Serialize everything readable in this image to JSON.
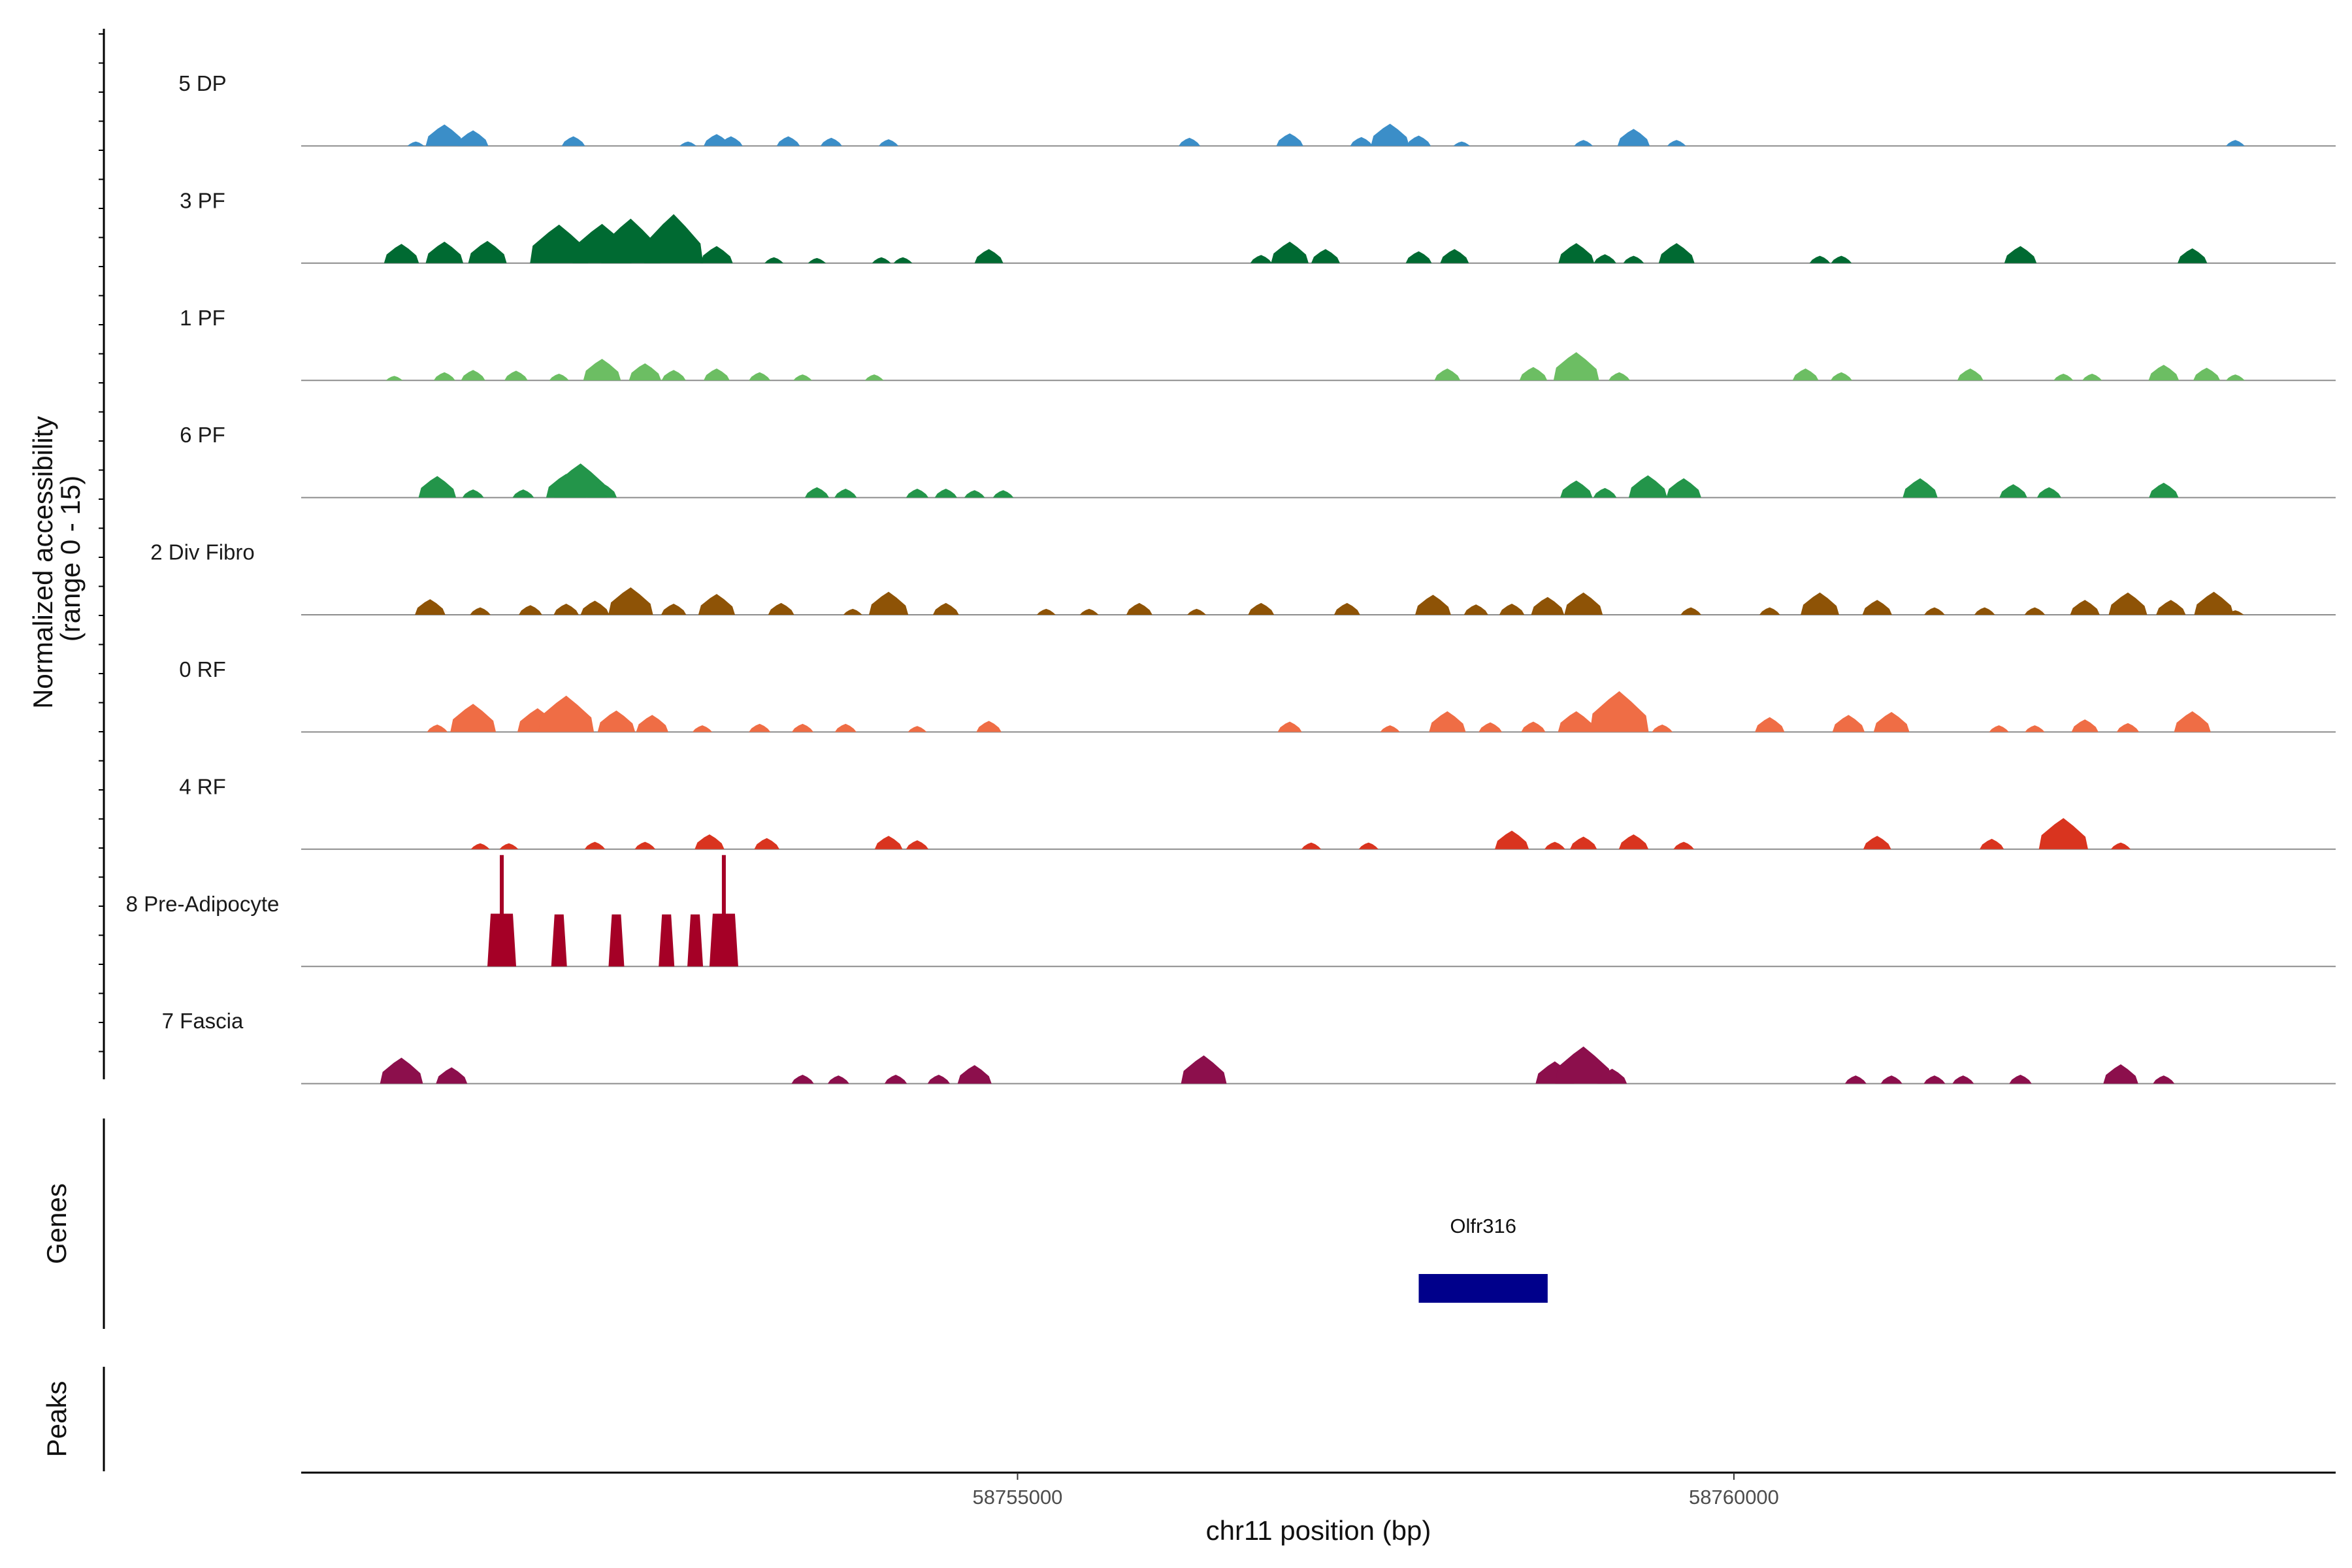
{
  "chart_data": {
    "type": "area",
    "region": {
      "chrom": "chr11",
      "start": 58750000,
      "end": 58764200
    },
    "ylabel_line1": "Normalized accessibility",
    "ylabel_line2": "(range 0 - 15)",
    "ylim": [
      0,
      15
    ],
    "xlabel": "chr11 position (bp)",
    "x_ticks": [
      58755000,
      58760000
    ],
    "x_tick_labels": [
      "58755000",
      "58760000"
    ],
    "panel_labels": {
      "genes": "Genes",
      "peaks": "Peaks"
    },
    "tracks": [
      {
        "name": "5 DP",
        "color": "#3b8ec8",
        "peaks": [
          [
            58750800,
            0.6
          ],
          [
            58751000,
            2.9
          ],
          [
            58751200,
            2.1
          ],
          [
            58751900,
            1.3
          ],
          [
            58752700,
            0.6
          ],
          [
            58752900,
            1.6
          ],
          [
            58753000,
            1.3
          ],
          [
            58753400,
            1.3
          ],
          [
            58753700,
            1.1
          ],
          [
            58754100,
            0.9
          ],
          [
            58756200,
            1.1
          ],
          [
            58756900,
            1.7
          ],
          [
            58757400,
            1.2
          ],
          [
            58757600,
            3.0
          ],
          [
            58757800,
            1.4
          ],
          [
            58758100,
            0.6
          ],
          [
            58758950,
            0.8
          ],
          [
            58759300,
            2.3
          ],
          [
            58759600,
            0.8
          ],
          [
            58763500,
            0.8
          ]
        ]
      },
      {
        "name": "3 PF",
        "color": "#006a32",
        "peaks": [
          [
            58750700,
            2.6
          ],
          [
            58751000,
            2.9
          ],
          [
            58751300,
            3.0
          ],
          [
            58751800,
            5.2
          ],
          [
            58752100,
            5.3
          ],
          [
            58752300,
            6.0
          ],
          [
            58752600,
            6.6
          ],
          [
            58752900,
            2.3
          ],
          [
            58753300,
            0.8
          ],
          [
            58753600,
            0.7
          ],
          [
            58754050,
            0.8
          ],
          [
            58754200,
            0.8
          ],
          [
            58754800,
            1.9
          ],
          [
            58756700,
            1.1
          ],
          [
            58756900,
            2.9
          ],
          [
            58757150,
            1.9
          ],
          [
            58757800,
            1.6
          ],
          [
            58758050,
            1.9
          ],
          [
            58758900,
            2.7
          ],
          [
            58759100,
            1.2
          ],
          [
            58759300,
            1.0
          ],
          [
            58759600,
            2.7
          ],
          [
            58760600,
            1.0
          ],
          [
            58760750,
            1.0
          ],
          [
            58762000,
            2.3
          ],
          [
            58763200,
            2.0
          ]
        ]
      },
      {
        "name": "1 PF",
        "color": "#6cbe63",
        "peaks": [
          [
            58750650,
            0.6
          ],
          [
            58751000,
            1.1
          ],
          [
            58751200,
            1.4
          ],
          [
            58751500,
            1.3
          ],
          [
            58751800,
            0.9
          ],
          [
            58752100,
            2.9
          ],
          [
            58752400,
            2.3
          ],
          [
            58752600,
            1.4
          ],
          [
            58752900,
            1.6
          ],
          [
            58753200,
            1.1
          ],
          [
            58753500,
            0.8
          ],
          [
            58754000,
            0.8
          ],
          [
            58758000,
            1.6
          ],
          [
            58758600,
            1.8
          ],
          [
            58758900,
            3.8
          ],
          [
            58759200,
            1.1
          ],
          [
            58760500,
            1.6
          ],
          [
            58760750,
            1.1
          ],
          [
            58761650,
            1.6
          ],
          [
            58762300,
            0.9
          ],
          [
            58762500,
            0.9
          ],
          [
            58763000,
            2.1
          ],
          [
            58763300,
            1.7
          ],
          [
            58763500,
            0.8
          ]
        ]
      },
      {
        "name": "6 PF",
        "color": "#23954a",
        "peaks": [
          [
            58750950,
            2.9
          ],
          [
            58751200,
            1.1
          ],
          [
            58751550,
            1.1
          ],
          [
            58751850,
            3.2
          ],
          [
            58751950,
            4.6
          ],
          [
            58752100,
            2.0
          ],
          [
            58753600,
            1.4
          ],
          [
            58753800,
            1.2
          ],
          [
            58754300,
            1.2
          ],
          [
            58754500,
            1.2
          ],
          [
            58754700,
            1.0
          ],
          [
            58754900,
            1.0
          ],
          [
            58758900,
            2.3
          ],
          [
            58759100,
            1.3
          ],
          [
            58759400,
            3.0
          ],
          [
            58759650,
            2.6
          ],
          [
            58761300,
            2.6
          ],
          [
            58761950,
            1.8
          ],
          [
            58762200,
            1.4
          ],
          [
            58763000,
            2.0
          ]
        ]
      },
      {
        "name": "2 Div Fibro",
        "color": "#8e5306",
        "peaks": [
          [
            58750900,
            2.1
          ],
          [
            58751250,
            1.0
          ],
          [
            58751600,
            1.3
          ],
          [
            58751850,
            1.5
          ],
          [
            58752050,
            1.9
          ],
          [
            58752300,
            3.7
          ],
          [
            58752600,
            1.5
          ],
          [
            58752900,
            2.8
          ],
          [
            58753350,
            1.6
          ],
          [
            58753850,
            0.8
          ],
          [
            58754100,
            3.1
          ],
          [
            58754500,
            1.6
          ],
          [
            58755200,
            0.8
          ],
          [
            58755500,
            0.8
          ],
          [
            58755850,
            1.6
          ],
          [
            58756250,
            0.8
          ],
          [
            58756700,
            1.6
          ],
          [
            58757300,
            1.6
          ],
          [
            58757900,
            2.7
          ],
          [
            58758200,
            1.4
          ],
          [
            58758450,
            1.5
          ],
          [
            58758700,
            2.4
          ],
          [
            58758950,
            3.0
          ],
          [
            58759700,
            1.0
          ],
          [
            58760250,
            1.0
          ],
          [
            58760600,
            3.0
          ],
          [
            58761000,
            2.0
          ],
          [
            58761400,
            1.0
          ],
          [
            58761750,
            1.0
          ],
          [
            58762100,
            1.0
          ],
          [
            58762450,
            2.0
          ],
          [
            58762750,
            3.0
          ],
          [
            58763050,
            2.0
          ],
          [
            58763350,
            3.1
          ],
          [
            58763500,
            0.6
          ]
        ]
      },
      {
        "name": "0 RF",
        "color": "#ef6d45",
        "peaks": [
          [
            58750950,
            1.0
          ],
          [
            58751200,
            3.8
          ],
          [
            58751650,
            3.2
          ],
          [
            58751850,
            4.9
          ],
          [
            58752200,
            2.9
          ],
          [
            58752450,
            2.3
          ],
          [
            58752800,
            0.9
          ],
          [
            58753200,
            1.1
          ],
          [
            58753500,
            1.1
          ],
          [
            58753800,
            1.1
          ],
          [
            58754300,
            0.8
          ],
          [
            58754800,
            1.5
          ],
          [
            58756900,
            1.4
          ],
          [
            58757600,
            0.9
          ],
          [
            58758000,
            2.8
          ],
          [
            58758300,
            1.3
          ],
          [
            58758600,
            1.4
          ],
          [
            58758900,
            2.8
          ],
          [
            58759200,
            5.5
          ],
          [
            58759500,
            1.0
          ],
          [
            58760250,
            2.0
          ],
          [
            58760800,
            2.3
          ],
          [
            58761100,
            2.7
          ],
          [
            58761850,
            0.9
          ],
          [
            58762100,
            0.9
          ],
          [
            58762450,
            1.7
          ],
          [
            58762750,
            1.2
          ],
          [
            58763200,
            2.8
          ]
        ]
      },
      {
        "name": "4 RF",
        "color": "#d9341f",
        "peaks": [
          [
            58751250,
            0.8
          ],
          [
            58751450,
            0.8
          ],
          [
            58752050,
            1.0
          ],
          [
            58752400,
            1.0
          ],
          [
            58752850,
            2.0
          ],
          [
            58753250,
            1.5
          ],
          [
            58754100,
            1.8
          ],
          [
            58754300,
            1.2
          ],
          [
            58757050,
            0.9
          ],
          [
            58757450,
            0.9
          ],
          [
            58758450,
            2.5
          ],
          [
            58758750,
            1.0
          ],
          [
            58758950,
            1.7
          ],
          [
            58759300,
            2.0
          ],
          [
            58759650,
            1.0
          ],
          [
            58761000,
            1.8
          ],
          [
            58761800,
            1.4
          ],
          [
            58762300,
            4.2
          ],
          [
            58762700,
            0.9
          ]
        ]
      },
      {
        "name": "8 Pre-Adipocyte",
        "color": "#a50026",
        "peaks": [
          [
            58751400,
            15.0
          ],
          [
            58751800,
            7.0
          ],
          [
            58752200,
            7.0
          ],
          [
            58752550,
            7.0
          ],
          [
            58752750,
            7.0
          ],
          [
            58752950,
            15.0
          ]
        ]
      },
      {
        "name": "7 Fascia",
        "color": "#8c0f4c",
        "peaks": [
          [
            58750700,
            3.5
          ],
          [
            58751050,
            2.2
          ],
          [
            58753500,
            1.2
          ],
          [
            58753750,
            1.1
          ],
          [
            58754150,
            1.2
          ],
          [
            58754450,
            1.2
          ],
          [
            58754700,
            2.5
          ],
          [
            58756300,
            3.8
          ],
          [
            58758750,
            3.0
          ],
          [
            58758950,
            5.0
          ],
          [
            58759150,
            2.0
          ],
          [
            58760850,
            1.1
          ],
          [
            58761100,
            1.1
          ],
          [
            58761400,
            1.1
          ],
          [
            58761600,
            1.1
          ],
          [
            58762000,
            1.2
          ],
          [
            58762700,
            2.6
          ],
          [
            58763000,
            1.1
          ]
        ]
      }
    ],
    "genes": [
      {
        "name": "Olfr316",
        "start": 58757800,
        "end": 58758700,
        "color": "#00008b"
      }
    ]
  }
}
